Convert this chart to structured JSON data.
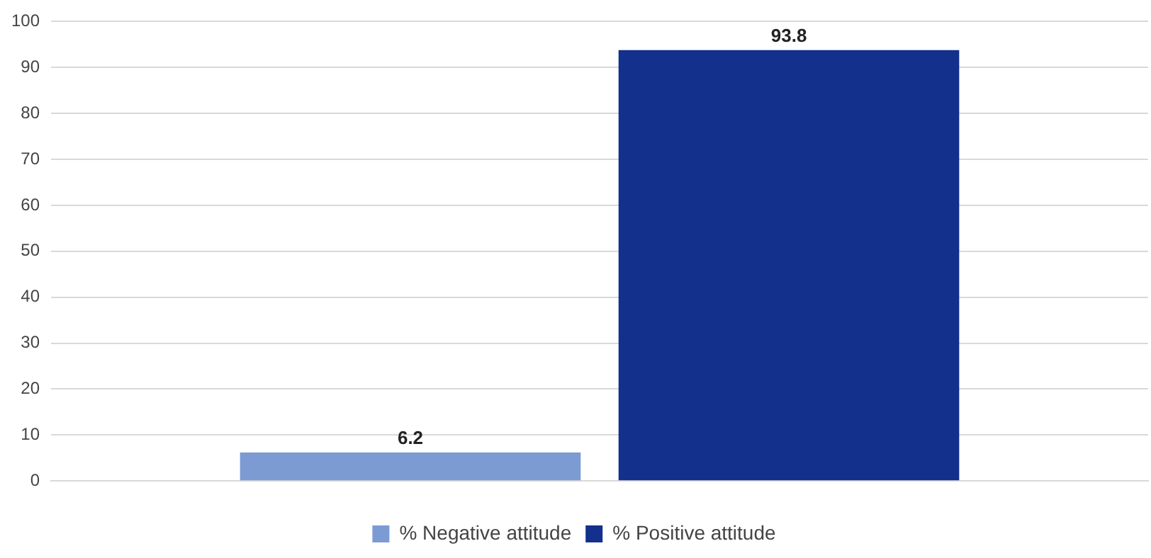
{
  "chart_data": {
    "type": "bar",
    "categories": [
      null
    ],
    "series": [
      {
        "name": "% Negative attitude",
        "color": "#7b9bd2",
        "values": [
          6.2
        ]
      },
      {
        "name": "% Positive attitude",
        "color": "#12308c",
        "values": [
          93.8
        ]
      }
    ],
    "ylim": [
      0,
      100
    ],
    "yticks": [
      0,
      10,
      20,
      30,
      40,
      50,
      60,
      70,
      80,
      90,
      100
    ],
    "grid": "y",
    "legend": "bottom",
    "data_labels": true
  }
}
